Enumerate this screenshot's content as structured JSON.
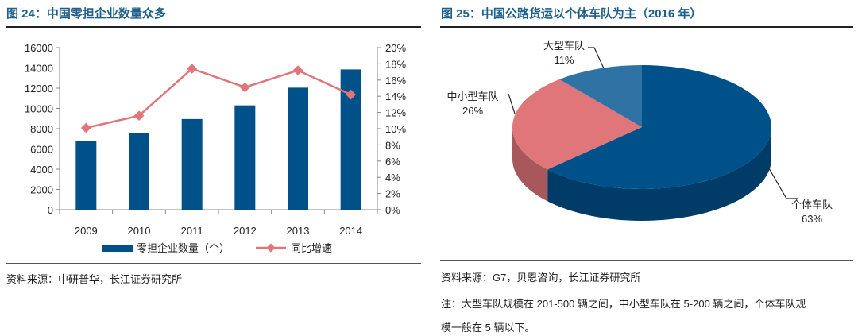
{
  "left": {
    "title": "图 24：中国零担企业数量众多",
    "source": "资料来源：中研普华，长江证券研究所"
  },
  "right": {
    "title": "图 25：中国公路货运以个体车队为主（2016 年）",
    "source": "资料来源：G7，贝恩咨询，长江证券研究所",
    "note_line1": "注：大型车队规模在 201-500 辆之间，中小型车队在 5-200 辆之间，个体车队规",
    "note_line2": "模一般在 5 辆以下。"
  },
  "chart_data": [
    {
      "type": "bar+line",
      "categories": [
        "2009",
        "2010",
        "2011",
        "2012",
        "2013",
        "2014"
      ],
      "series": [
        {
          "name": "零担企业数量（个）",
          "type": "bar",
          "axis": "left",
          "color": "#00518a",
          "values": [
            6750,
            7600,
            8950,
            10300,
            12050,
            13850
          ]
        },
        {
          "name": "同比增速",
          "type": "line",
          "axis": "right",
          "color": "#e07679",
          "values": [
            10.1,
            11.6,
            17.4,
            15.1,
            17.2,
            14.2
          ]
        }
      ],
      "y_left": {
        "range": [
          0,
          16000
        ],
        "ticks": [
          "0",
          "2000",
          "4000",
          "6000",
          "8000",
          "10000",
          "12000",
          "14000",
          "16000"
        ]
      },
      "y_right": {
        "range": [
          0,
          20
        ],
        "ticks": [
          "0%",
          "2%",
          "4%",
          "6%",
          "8%",
          "10%",
          "12%",
          "14%",
          "16%",
          "18%",
          "20%"
        ]
      },
      "grid": false,
      "legend": "bottom"
    },
    {
      "type": "pie",
      "style": "3d",
      "slices": [
        {
          "label": "个体车队",
          "value": 63,
          "text": "63%",
          "color": "#00518a"
        },
        {
          "label": "中小型车队",
          "value": 26,
          "text": "26%",
          "color": "#e07679"
        },
        {
          "label": "大型车队",
          "value": 11,
          "text": "11%",
          "color": "#2e73a3"
        }
      ]
    }
  ]
}
